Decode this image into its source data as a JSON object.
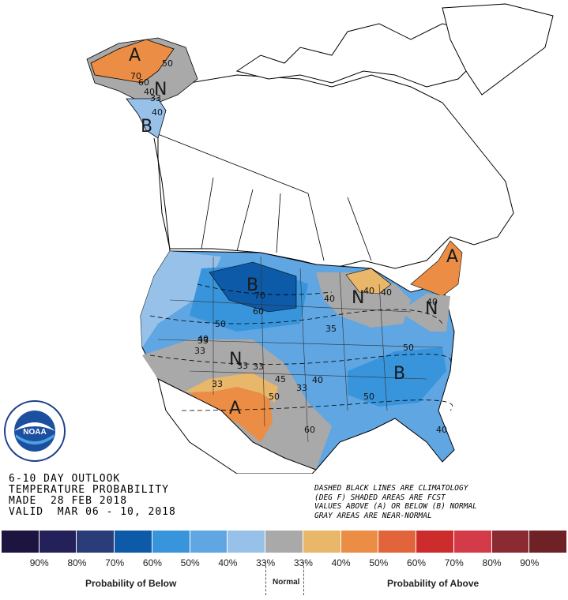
{
  "colors": {
    "below": [
      "#1d1540",
      "#24205a",
      "#2a3d79",
      "#0d5aa8",
      "#3895dc",
      "#5fa6e2",
      "#98c1ea"
    ],
    "normal": "#a9a9a9",
    "above": [
      "#e9b76a",
      "#eb8d44",
      "#e2643a",
      "#cc2d2c",
      "#d43b48",
      "#8b2a33",
      "#6f2226"
    ],
    "land_outline": "#000000"
  },
  "map": {
    "regions": [
      {
        "label": "A",
        "category": "above"
      },
      {
        "label": "N",
        "category": "normal"
      },
      {
        "label": "B",
        "category": "below"
      }
    ],
    "contour_values": [
      "60",
      "40",
      "70",
      "33",
      "40",
      "50",
      "70",
      "60",
      "50",
      "40",
      "33",
      "35",
      "40",
      "45",
      "33",
      "33",
      "50",
      "40",
      "33",
      "33",
      "40",
      "40",
      "60",
      "50",
      "50",
      "40",
      "40",
      "33"
    ]
  },
  "title_block": {
    "line1": "6-10 DAY OUTLOOK",
    "line2": "TEMPERATURE PROBABILITY",
    "line3": "MADE  28 FEB 2018",
    "line4": "VALID  MAR 06 - 10, 2018"
  },
  "notes": {
    "line1": "DASHED BLACK LINES ARE CLIMATOLOGY",
    "line2": "(DEG F) SHADED AREAS ARE FCST",
    "line3": "VALUES ABOVE (A) OR BELOW (B) NORMAL",
    "line4": "GRAY AREAS ARE NEAR-NORMAL"
  },
  "logo": {
    "text": "NOAA",
    "ring_text": "NATIONAL OCEANIC AND ATMOSPHERIC ADMINISTRATION · U.S. DEPARTMENT OF COMMERCE"
  },
  "legend": {
    "ticks": [
      "90%",
      "80%",
      "70%",
      "60%",
      "50%",
      "40%",
      "33%",
      "33%",
      "40%",
      "50%",
      "60%",
      "70%",
      "80%",
      "90%"
    ],
    "below_label": "Probability of Below",
    "normal_label": "Normal",
    "above_label": "Probability of Above"
  }
}
